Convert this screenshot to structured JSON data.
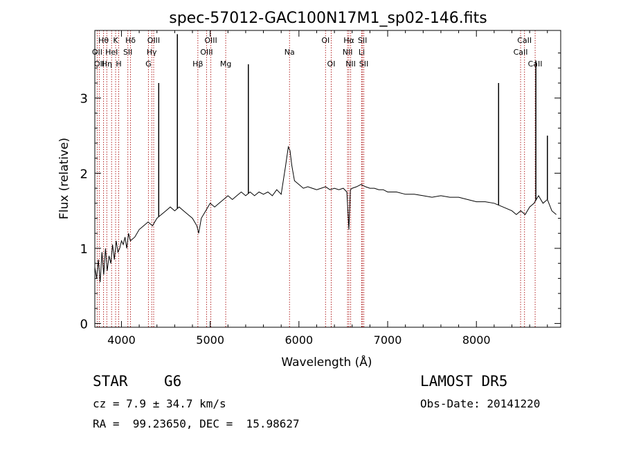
{
  "chart_data": {
    "type": "line",
    "title": "spec-57012-GAC100N17M1_sp02-146.fits",
    "xlabel": "Wavelength (Å)",
    "ylabel": "Flux (relative)",
    "xlim": [
      3700,
      8950
    ],
    "ylim": [
      -0.05,
      3.9
    ],
    "xticks": [
      4000,
      5000,
      6000,
      7000,
      8000
    ],
    "yticks": [
      0,
      1,
      2,
      3
    ],
    "grid": false,
    "legend": "none",
    "series": [
      {
        "color": "#000000",
        "x": [
          3700,
          3720,
          3740,
          3760,
          3780,
          3800,
          3820,
          3840,
          3860,
          3880,
          3900,
          3920,
          3940,
          3960,
          3980,
          4000,
          4020,
          4040,
          4060,
          4080,
          4100,
          4150,
          4200,
          4250,
          4300,
          4350,
          4400,
          4450,
          4500,
          4550,
          4600,
          4650,
          4700,
          4750,
          4800,
          4850,
          4870,
          4900,
          4950,
          5000,
          5050,
          5100,
          5150,
          5200,
          5250,
          5300,
          5350,
          5400,
          5450,
          5500,
          5550,
          5600,
          5650,
          5700,
          5750,
          5800,
          5850,
          5880,
          5900,
          5920,
          5950,
          6000,
          6050,
          6100,
          6150,
          6200,
          6250,
          6300,
          6350,
          6400,
          6450,
          6500,
          6540,
          6563,
          6580,
          6600,
          6650,
          6700,
          6750,
          6800,
          6850,
          6900,
          6950,
          7000,
          7100,
          7200,
          7300,
          7400,
          7500,
          7600,
          7700,
          7800,
          7900,
          8000,
          8100,
          8200,
          8300,
          8400,
          8450,
          8500,
          8550,
          8600,
          8650,
          8700,
          8750,
          8800,
          8850,
          8900
        ],
        "y": [
          0.75,
          0.6,
          0.85,
          0.55,
          0.95,
          0.65,
          1.0,
          0.7,
          0.9,
          0.8,
          1.05,
          0.85,
          1.1,
          0.95,
          1.0,
          1.1,
          1.05,
          1.15,
          1.0,
          1.2,
          1.1,
          1.15,
          1.25,
          1.3,
          1.35,
          1.3,
          1.4,
          1.45,
          1.5,
          1.55,
          1.5,
          1.55,
          1.5,
          1.45,
          1.4,
          1.3,
          1.2,
          1.4,
          1.5,
          1.6,
          1.55,
          1.6,
          1.65,
          1.7,
          1.65,
          1.7,
          1.75,
          1.7,
          1.75,
          1.7,
          1.75,
          1.72,
          1.75,
          1.7,
          1.78,
          1.72,
          2.1,
          2.35,
          2.3,
          2.1,
          1.9,
          1.85,
          1.8,
          1.82,
          1.8,
          1.78,
          1.8,
          1.82,
          1.78,
          1.8,
          1.78,
          1.8,
          1.75,
          1.25,
          1.78,
          1.8,
          1.82,
          1.85,
          1.82,
          1.8,
          1.8,
          1.78,
          1.78,
          1.75,
          1.75,
          1.72,
          1.72,
          1.7,
          1.68,
          1.7,
          1.68,
          1.68,
          1.65,
          1.62,
          1.62,
          1.6,
          1.55,
          1.5,
          1.45,
          1.5,
          1.45,
          1.55,
          1.6,
          1.7,
          1.6,
          1.65,
          1.5,
          1.45
        ]
      }
    ],
    "spikes": [
      {
        "x": 4420,
        "y": 3.2
      },
      {
        "x": 4630,
        "y": 3.85
      },
      {
        "x": 5430,
        "y": 3.45
      },
      {
        "x": 8250,
        "y": 3.2
      },
      {
        "x": 8670,
        "y": 3.5
      },
      {
        "x": 8800,
        "y": 2.5
      }
    ],
    "lines": [
      {
        "x": 3727,
        "label": "OII",
        "row": 1
      },
      {
        "x": 3750,
        "label": "OII",
        "row": 2
      },
      {
        "x": 3798,
        "label": "Hθ",
        "row": 0
      },
      {
        "x": 3835,
        "label": "Hη",
        "row": 2
      },
      {
        "x": 3889,
        "label": "HeI",
        "row": 1
      },
      {
        "x": 3934,
        "label": "K",
        "row": 0
      },
      {
        "x": 3969,
        "label": "H",
        "row": 2
      },
      {
        "x": 4072,
        "label": "SII",
        "row": 1
      },
      {
        "x": 4102,
        "label": "Hδ",
        "row": 0
      },
      {
        "x": 4304,
        "label": "G",
        "row": 2
      },
      {
        "x": 4341,
        "label": "Hγ",
        "row": 1
      },
      {
        "x": 4363,
        "label": "OIII",
        "row": 0
      },
      {
        "x": 4861,
        "label": "Hβ",
        "row": 2
      },
      {
        "x": 4959,
        "label": "OIII",
        "row": 1
      },
      {
        "x": 5007,
        "label": "OIII",
        "row": 0
      },
      {
        "x": 5175,
        "label": "Mg",
        "row": 2
      },
      {
        "x": 5894,
        "label": "Na",
        "row": 1
      },
      {
        "x": 6300,
        "label": "OI",
        "row": 0
      },
      {
        "x": 6364,
        "label": "OI",
        "row": 2
      },
      {
        "x": 6548,
        "label": "NII",
        "row": 1
      },
      {
        "x": 6563,
        "label": "Hα",
        "row": 0
      },
      {
        "x": 6583,
        "label": "NII",
        "row": 2
      },
      {
        "x": 6716,
        "label": "SII",
        "row": 0
      },
      {
        "x": 6707,
        "label": "Li",
        "row": 1
      },
      {
        "x": 6731,
        "label": "SII",
        "row": 2
      },
      {
        "x": 8498,
        "label": "CaII",
        "row": 1
      },
      {
        "x": 8542,
        "label": "CaII",
        "row": 0
      },
      {
        "x": 8662,
        "label": "CaII",
        "row": 2
      }
    ]
  },
  "info": {
    "class": "STAR",
    "subclass": "G6",
    "cz": "cz = 7.9 ± 34.7 km/s",
    "coords": "RA =  99.23650, DEC =  15.98627",
    "survey": "LAMOST DR5",
    "obs_date": "Obs-Date: 20141220"
  }
}
